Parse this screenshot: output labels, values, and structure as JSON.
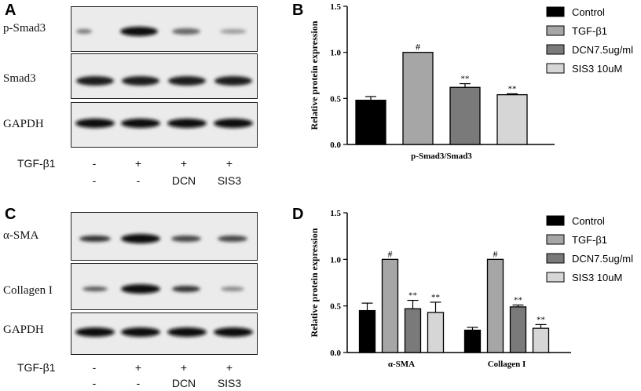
{
  "panels": {
    "A": "A",
    "B": "B",
    "C": "C",
    "D": "D"
  },
  "blot_top": {
    "labels": [
      "p-Smad3",
      "Smad3",
      "GAPDH"
    ],
    "row_label": "TGF-β1",
    "row1": [
      "-",
      "+",
      "+",
      "+"
    ],
    "row2": [
      "-",
      "-",
      "DCN",
      "SIS3"
    ]
  },
  "blot_bottom": {
    "labels": [
      "α-SMA",
      "Collagen I",
      "GAPDH"
    ],
    "row_label": "TGF-β1",
    "row1": [
      "-",
      "+",
      "+",
      "+"
    ],
    "row2": [
      "-",
      "-",
      "DCN",
      "SIS3"
    ]
  },
  "colors": {
    "control": "#000000",
    "tgf": "#a6a6a6",
    "dcn": "#7a7a7a",
    "sis3": "#d6d6d6"
  },
  "legend": [
    "Control",
    "TGF-β1",
    "DCN7.5ug/ml",
    "SIS3 10uM"
  ],
  "chart_data": [
    {
      "type": "bar",
      "panel": "B",
      "ylabel": "Relative protein expression",
      "ylim": [
        0,
        1.5
      ],
      "yticks": [
        "0.0",
        "0.5",
        "1.0",
        "1.5"
      ],
      "categories": [
        "p-Smad3/Smad3"
      ],
      "series": [
        {
          "name": "Control",
          "values": [
            0.48
          ],
          "err": [
            0.04
          ],
          "mark": [
            ""
          ]
        },
        {
          "name": "TGF-β1",
          "values": [
            1.0
          ],
          "err": [
            0.0
          ],
          "mark": [
            "#"
          ]
        },
        {
          "name": "DCN7.5ug/ml",
          "values": [
            0.62
          ],
          "err": [
            0.04
          ],
          "mark": [
            "**"
          ]
        },
        {
          "name": "SIS3 10uM",
          "values": [
            0.54
          ],
          "err": [
            0.01
          ],
          "mark": [
            "**"
          ]
        }
      ],
      "legend_position": "right"
    },
    {
      "type": "bar",
      "panel": "D",
      "ylabel": "Relative protein expression",
      "ylim": [
        0,
        1.5
      ],
      "yticks": [
        "0.0",
        "0.5",
        "1.0",
        "1.5"
      ],
      "categories": [
        "α-SMA",
        "Collagen I"
      ],
      "series": [
        {
          "name": "Control",
          "values": [
            0.45,
            0.24
          ],
          "err": [
            0.08,
            0.03
          ],
          "mark": [
            "",
            ""
          ]
        },
        {
          "name": "TGF-β1",
          "values": [
            1.0,
            1.0
          ],
          "err": [
            0.0,
            0.0
          ],
          "mark": [
            "#",
            "#"
          ]
        },
        {
          "name": "DCN7.5ug/ml",
          "values": [
            0.47,
            0.49
          ],
          "err": [
            0.09,
            0.02
          ],
          "mark": [
            "**",
            "**"
          ]
        },
        {
          "name": "SIS3 10uM",
          "values": [
            0.43,
            0.26
          ],
          "err": [
            0.11,
            0.04
          ],
          "mark": [
            "**",
            "**"
          ]
        }
      ],
      "legend_position": "right"
    }
  ]
}
